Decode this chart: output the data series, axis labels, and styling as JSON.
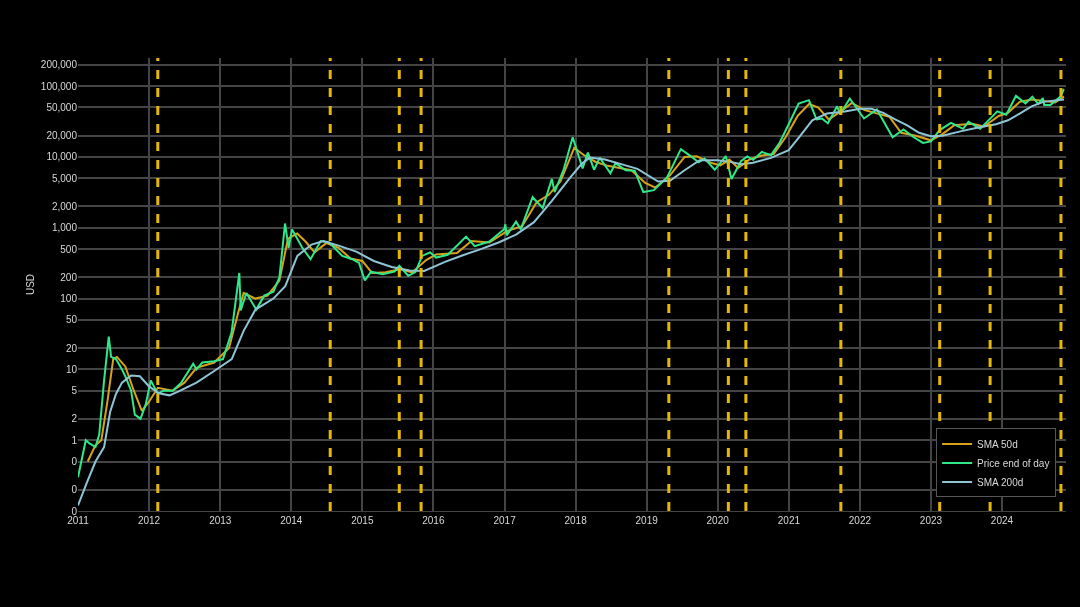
{
  "chart_data": {
    "type": "line",
    "ylabel": "USD",
    "log": "y",
    "grid": true,
    "legend": "bottom right",
    "line_style": "solid",
    "marker": "none",
    "xlim": [
      "2011-01-01",
      "2024-11-25"
    ],
    "xticks": [
      "2011",
      "2012",
      "2013",
      "2014",
      "2015",
      "2016",
      "2017",
      "2018",
      "2019",
      "2020",
      "2021",
      "2022",
      "2023",
      "2024"
    ],
    "ylim": [
      0.1,
      250000
    ],
    "yticks": [
      {
        "value": 0.1,
        "label": "0"
      },
      {
        "value": 0.2,
        "label": "0"
      },
      {
        "value": 0.5,
        "label": "0"
      },
      1,
      2,
      5,
      10,
      20,
      50,
      100,
      200,
      500,
      {
        "value": 1000,
        "label": "1,000"
      },
      {
        "value": 2000,
        "label": "2,000"
      },
      {
        "value": 5000,
        "label": "5,000"
      },
      {
        "value": 10000,
        "label": "10,000"
      },
      {
        "value": 20000,
        "label": "20,000"
      },
      {
        "value": 50000,
        "label": "50,000"
      },
      {
        "value": 100000,
        "label": "100,000"
      },
      {
        "value": 200000,
        "label": "200,000"
      }
    ],
    "ref_lines": [
      {
        "axis": "x",
        "value": "2012-02-15",
        "color": "#e6b800",
        "line_style": "dashed"
      },
      {
        "axis": "x",
        "value": "2014-07-20",
        "color": "#e6b800",
        "line_style": "dashed"
      },
      {
        "axis": "x",
        "value": "2015-07-10",
        "color": "#e6b800",
        "line_style": "dashed"
      },
      {
        "axis": "x",
        "value": "2015-10-30",
        "color": "#e6b800",
        "line_style": "dashed"
      },
      {
        "axis": "x",
        "value": "2019-04-25",
        "color": "#e6b800",
        "line_style": "dashed"
      },
      {
        "axis": "x",
        "value": "2020-02-25",
        "color": "#e6b800",
        "line_style": "dashed"
      },
      {
        "axis": "x",
        "value": "2020-05-25",
        "color": "#e6b800",
        "line_style": "dashed"
      },
      {
        "axis": "x",
        "value": "2021-09-25",
        "color": "#e6b800",
        "line_style": "dashed"
      },
      {
        "axis": "x",
        "value": "2023-02-15",
        "color": "#e6b800",
        "line_style": "dashed"
      },
      {
        "axis": "x",
        "value": "2023-11-01",
        "color": "#e6b800",
        "line_style": "dashed"
      },
      {
        "axis": "x",
        "value": "2024-10-30",
        "color": "#e6b800",
        "line_style": "dashed"
      }
    ],
    "series": [
      {
        "name": "SMA 50d",
        "color": "#d9a21b",
        "x": [
          "2011-02-20",
          "2011-04-01",
          "2011-05-01",
          "2011-06-01",
          "2011-07-01",
          "2011-07-20",
          "2011-09-01",
          "2011-10-15",
          "2011-11-25",
          "2012-01-01",
          "2012-02-15",
          "2012-05-01",
          "2012-07-01",
          "2012-09-01",
          "2012-12-01",
          "2013-02-15",
          "2013-04-01",
          "2013-05-01",
          "2013-07-01",
          "2013-09-01",
          "2013-11-01",
          "2013-12-15",
          "2014-01-31",
          "2014-03-15",
          "2014-05-01",
          "2014-07-01",
          "2014-09-01",
          "2014-11-01",
          "2015-01-01",
          "2015-02-20",
          "2015-05-01",
          "2015-07-15",
          "2015-09-15",
          "2015-11-25",
          "2016-01-15",
          "2016-05-01",
          "2016-07-15",
          "2016-10-15",
          "2017-01-15",
          "2017-04-01",
          "2017-06-15",
          "2017-08-15",
          "2017-10-15",
          "2017-12-25",
          "2018-02-15",
          "2018-04-15",
          "2018-06-15",
          "2018-08-15",
          "2018-10-15",
          "2018-12-25",
          "2019-02-15",
          "2019-05-01",
          "2019-07-15",
          "2019-09-15",
          "2019-12-01",
          "2020-01-15",
          "2020-03-01",
          "2020-04-15",
          "2020-06-15",
          "2020-08-15",
          "2020-10-15",
          "2020-12-15",
          "2021-02-15",
          "2021-04-15",
          "2021-06-01",
          "2021-07-25",
          "2021-09-30",
          "2021-11-20",
          "2022-01-25",
          "2022-04-01",
          "2022-06-01",
          "2022-08-01",
          "2022-10-15",
          "2022-12-31",
          "2023-03-01",
          "2023-05-01",
          "2023-08-01",
          "2023-10-01",
          "2023-12-15",
          "2024-02-01",
          "2024-04-01",
          "2024-06-01",
          "2024-08-01",
          "2024-09-30",
          "2024-11-15"
        ],
        "values": [
          0.5,
          0.85,
          1.0,
          3.5,
          14,
          15,
          11,
          5,
          2.6,
          3.5,
          5.5,
          5,
          6.5,
          10.5,
          12.5,
          20,
          60,
          120,
          100,
          110,
          180,
          700,
          830,
          640,
          450,
          610,
          520,
          370,
          340,
          230,
          235,
          260,
          235,
          350,
          420,
          440,
          650,
          620,
          900,
          1050,
          2300,
          2900,
          4500,
          13500,
          10500,
          8500,
          7500,
          7000,
          6500,
          4300,
          3700,
          5500,
          10000,
          10200,
          8200,
          7600,
          9200,
          7000,
          9300,
          10500,
          11000,
          19000,
          38000,
          56000,
          50000,
          34000,
          45000,
          58000,
          46000,
          41000,
          37000,
          22000,
          20000,
          17200,
          21000,
          28000,
          29500,
          27000,
          38000,
          42000,
          60000,
          65000,
          62000,
          59000,
          71000
        ]
      },
      {
        "name": "Price end of day",
        "color": "#2ee88a",
        "x": [
          "2011-01-01",
          "2011-02-10",
          "2011-03-01",
          "2011-04-01",
          "2011-04-20",
          "2011-05-15",
          "2011-06-08",
          "2011-06-20",
          "2011-07-15",
          "2011-08-15",
          "2011-09-01",
          "2011-10-01",
          "2011-10-20",
          "2011-11-18",
          "2011-12-15",
          "2012-01-10",
          "2012-02-15",
          "2012-03-15",
          "2012-05-01",
          "2012-06-15",
          "2012-08-15",
          "2012-09-01",
          "2012-10-01",
          "2012-12-01",
          "2013-01-15",
          "2013-02-28",
          "2013-04-09",
          "2013-04-16",
          "2013-05-15",
          "2013-07-05",
          "2013-08-15",
          "2013-10-01",
          "2013-11-01",
          "2013-11-30",
          "2013-12-18",
          "2014-01-05",
          "2014-02-25",
          "2014-04-10",
          "2014-06-01",
          "2014-07-15",
          "2014-09-20",
          "2014-10-15",
          "2014-11-10",
          "2014-12-15",
          "2015-01-14",
          "2015-02-15",
          "2015-04-15",
          "2015-06-15",
          "2015-07-10",
          "2015-08-25",
          "2015-10-01",
          "2015-11-04",
          "2015-12-15",
          "2016-01-15",
          "2016-03-15",
          "2016-06-17",
          "2016-08-01",
          "2016-10-15",
          "2016-12-31",
          "2017-01-05",
          "2017-01-12",
          "2017-03-01",
          "2017-03-25",
          "2017-05-25",
          "2017-07-16",
          "2017-09-01",
          "2017-09-15",
          "2017-11-01",
          "2017-12-17",
          "2018-02-06",
          "2018-03-05",
          "2018-04-06",
          "2018-05-05",
          "2018-06-29",
          "2018-07-25",
          "2018-09-15",
          "2018-11-01",
          "2018-12-15",
          "2019-02-07",
          "2019-04-15",
          "2019-06-26",
          "2019-08-15",
          "2019-09-25",
          "2019-10-26",
          "2019-12-17",
          "2020-02-12",
          "2020-03-12",
          "2020-04-30",
          "2020-06-01",
          "2020-07-01",
          "2020-08-15",
          "2020-10-01",
          "2020-11-15",
          "2020-12-31",
          "2021-02-20",
          "2021-04-14",
          "2021-05-23",
          "2021-06-20",
          "2021-07-20",
          "2021-09-06",
          "2021-09-21",
          "2021-11-10",
          "2022-01-22",
          "2022-03-29",
          "2022-06-18",
          "2022-08-13",
          "2022-10-01",
          "2022-11-21",
          "2023-01-01",
          "2023-02-15",
          "2023-04-14",
          "2023-06-15",
          "2023-07-13",
          "2023-09-11",
          "2023-10-31",
          "2023-12-08",
          "2024-01-23",
          "2024-03-13",
          "2024-05-01",
          "2024-06-05",
          "2024-07-05",
          "2024-07-29",
          "2024-08-05",
          "2024-09-06",
          "2024-10-29",
          "2024-11-12",
          "2024-11-15"
        ],
        "values": [
          0.3,
          1.0,
          0.9,
          0.8,
          1.2,
          7,
          29,
          15,
          14,
          10,
          8,
          5,
          2.3,
          2.0,
          3.2,
          7,
          4.5,
          5,
          5,
          6.5,
          12,
          10,
          12.5,
          13,
          14,
          33,
          230,
          68,
          120,
          70,
          110,
          125,
          200,
          1150,
          520,
          950,
          530,
          360,
          650,
          620,
          400,
          380,
          360,
          320,
          180,
          240,
          220,
          240,
          290,
          210,
          237,
          400,
          450,
          380,
          415,
          750,
          550,
          640,
          960,
          1120,
          780,
          1220,
          950,
          2700,
          1900,
          4900,
          3200,
          6700,
          19000,
          6900,
          11500,
          6600,
          9800,
          5900,
          8200,
          6500,
          6400,
          3200,
          3400,
          5100,
          12900,
          10300,
          8400,
          9500,
          6600,
          10300,
          4900,
          8700,
          10200,
          9100,
          11800,
          10600,
          16000,
          29000,
          57000,
          63500,
          34000,
          35000,
          30000,
          52000,
          40000,
          67000,
          35000,
          47000,
          19000,
          24400,
          19300,
          15800,
          16600,
          24000,
          30400,
          25000,
          31400,
          25100,
          34500,
          44000,
          39500,
          73000,
          57000,
          71000,
          56000,
          68000,
          54000,
          54000,
          72000,
          89000,
          91000
        ]
      },
      {
        "name": "SMA 200d",
        "color": "#8ec5d6",
        "x": [
          "2011-01-01",
          "2011-02-15",
          "2011-04-01",
          "2011-05-15",
          "2011-06-15",
          "2011-07-15",
          "2011-08-15",
          "2011-10-01",
          "2011-11-15",
          "2011-12-31",
          "2012-02-20",
          "2012-04-15",
          "2012-06-01",
          "2012-09-01",
          "2012-12-01",
          "2013-03-01",
          "2013-05-01",
          "2013-07-01",
          "2013-10-01",
          "2013-12-01",
          "2014-02-01",
          "2014-04-15",
          "2014-06-15",
          "2014-09-01",
          "2014-12-01",
          "2015-03-01",
          "2015-06-01",
          "2015-09-01",
          "2015-11-15",
          "2016-03-01",
          "2016-06-01",
          "2016-09-01",
          "2016-12-01",
          "2017-03-01",
          "2017-06-01",
          "2017-09-01",
          "2017-12-01",
          "2018-02-01",
          "2018-03-15",
          "2018-06-01",
          "2018-09-01",
          "2018-11-15",
          "2019-03-01",
          "2019-05-01",
          "2019-07-15",
          "2019-10-01",
          "2019-12-31",
          "2020-03-01",
          "2020-05-01",
          "2020-07-01",
          "2020-10-01",
          "2020-12-31",
          "2021-03-01",
          "2021-05-01",
          "2021-07-15",
          "2021-10-15",
          "2022-01-01",
          "2022-03-01",
          "2022-05-01",
          "2022-07-01",
          "2022-09-01",
          "2022-11-01",
          "2023-01-01",
          "2023-03-01",
          "2023-06-01",
          "2023-09-01",
          "2023-12-01",
          "2024-02-01",
          "2024-04-01",
          "2024-06-01",
          "2024-08-01",
          "2024-10-01",
          "2024-11-15"
        ],
        "values": [
          0.12,
          0.25,
          0.5,
          0.8,
          2.5,
          4.5,
          6.5,
          8.2,
          8,
          5.8,
          4.6,
          4.3,
          4.9,
          6.5,
          9.5,
          14,
          35,
          70,
          100,
          150,
          400,
          580,
          650,
          560,
          460,
          340,
          280,
          250,
          245,
          330,
          410,
          500,
          620,
          800,
          1200,
          2400,
          5000,
          8000,
          9800,
          9200,
          7800,
          6800,
          4500,
          4600,
          6500,
          9000,
          9000,
          8600,
          7900,
          8300,
          9700,
          12500,
          20000,
          33000,
          41000,
          44000,
          48000,
          48000,
          42000,
          34000,
          28000,
          22000,
          19700,
          20000,
          23000,
          26000,
          29000,
          33000,
          41000,
          52000,
          60000,
          63000,
          65000
        ]
      }
    ]
  }
}
